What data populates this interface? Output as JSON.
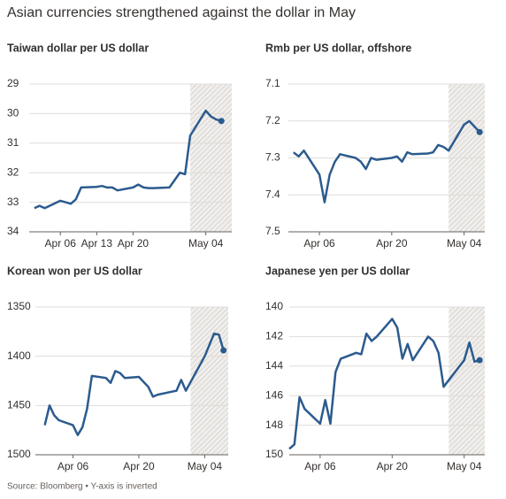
{
  "title": "Asian currencies strengthened against the dollar in May",
  "source": "Source: Bloomberg • Y-axis is inverted",
  "chart_data": [
    {
      "type": "line",
      "title": "Taiwan dollar per US dollar",
      "color": "#2b5b8e",
      "y_inverted": true,
      "grid": true,
      "end_marker": true,
      "shaded_from": "May 01",
      "xlim": [
        "Mar 31",
        "May 09"
      ],
      "xticks": [
        "Apr 06",
        "Apr 13",
        "Apr 20",
        "May 04"
      ],
      "ylim": [
        29,
        34
      ],
      "yticks": [
        29,
        30,
        31,
        32,
        33,
        34
      ],
      "x": [
        "Apr 01",
        "Apr 02",
        "Apr 03",
        "Apr 06",
        "Apr 07",
        "Apr 08",
        "Apr 09",
        "Apr 10",
        "Apr 13",
        "Apr 14",
        "Apr 15",
        "Apr 16",
        "Apr 17",
        "Apr 20",
        "Apr 21",
        "Apr 22",
        "Apr 23",
        "Apr 24",
        "Apr 27",
        "Apr 28",
        "Apr 29",
        "Apr 30",
        "May 01",
        "May 04",
        "May 05",
        "May 06",
        "May 07"
      ],
      "values": [
        33.2,
        33.12,
        33.2,
        32.95,
        33.0,
        33.05,
        32.9,
        32.5,
        32.48,
        32.45,
        32.5,
        32.5,
        32.6,
        32.5,
        32.4,
        32.5,
        32.52,
        32.52,
        32.5,
        32.25,
        32.0,
        32.05,
        30.75,
        29.9,
        30.1,
        30.2,
        30.25
      ]
    },
    {
      "type": "line",
      "title": "Rmb per US dollar, offshore",
      "color": "#2b5b8e",
      "y_inverted": true,
      "grid": true,
      "end_marker": true,
      "shaded_from": "May 01",
      "xlim": [
        "Mar 31",
        "May 08"
      ],
      "xticks": [
        "Apr 06",
        "Apr 20",
        "May 04"
      ],
      "ylim": [
        7.1,
        7.5
      ],
      "yticks": [
        7.1,
        7.2,
        7.3,
        7.4,
        7.5
      ],
      "x": [
        "Apr 01",
        "Apr 02",
        "Apr 03",
        "Apr 06",
        "Apr 07",
        "Apr 08",
        "Apr 09",
        "Apr 10",
        "Apr 13",
        "Apr 14",
        "Apr 15",
        "Apr 16",
        "Apr 17",
        "Apr 20",
        "Apr 21",
        "Apr 22",
        "Apr 23",
        "Apr 24",
        "Apr 27",
        "Apr 28",
        "Apr 29",
        "Apr 30",
        "May 01",
        "May 04",
        "May 05",
        "May 06",
        "May 07"
      ],
      "values": [
        7.285,
        7.296,
        7.28,
        7.345,
        7.42,
        7.345,
        7.31,
        7.29,
        7.3,
        7.31,
        7.33,
        7.3,
        7.305,
        7.3,
        7.296,
        7.31,
        7.285,
        7.29,
        7.288,
        7.285,
        7.265,
        7.27,
        7.28,
        7.21,
        7.2,
        7.215,
        7.23
      ]
    },
    {
      "type": "line",
      "title": "Korean won per US dollar",
      "color": "#2b5b8e",
      "y_inverted": true,
      "grid": true,
      "end_marker": true,
      "shaded_from": "May 01",
      "xlim": [
        "Mar 29",
        "May 09"
      ],
      "xticks": [
        "Apr 06",
        "Apr 20",
        "May 04"
      ],
      "ylim": [
        1350,
        1500
      ],
      "yticks": [
        1350,
        1400,
        1450,
        1500
      ],
      "x": [
        "Mar 31",
        "Apr 01",
        "Apr 02",
        "Apr 03",
        "Apr 06",
        "Apr 07",
        "Apr 08",
        "Apr 09",
        "Apr 10",
        "Apr 13",
        "Apr 14",
        "Apr 15",
        "Apr 16",
        "Apr 17",
        "Apr 20",
        "Apr 21",
        "Apr 22",
        "Apr 23",
        "Apr 24",
        "Apr 27",
        "Apr 28",
        "Apr 29",
        "Apr 30",
        "May 04",
        "May 06",
        "May 07",
        "May 08"
      ],
      "values": [
        1470,
        1450,
        1460,
        1465,
        1470,
        1480,
        1472,
        1453,
        1420,
        1422,
        1427,
        1415,
        1417,
        1422,
        1421,
        1426,
        1431,
        1441,
        1439,
        1436,
        1435,
        1424,
        1435,
        1400,
        1377,
        1378,
        1394
      ]
    },
    {
      "type": "line",
      "title": "Japanese yen per US dollar",
      "color": "#2b5b8e",
      "y_inverted": true,
      "grid": true,
      "end_marker": true,
      "shaded_from": "May 01",
      "xlim": [
        "Mar 31",
        "May 08"
      ],
      "xticks": [
        "Apr 06",
        "Apr 20",
        "May 04"
      ],
      "ylim": [
        140,
        150
      ],
      "yticks": [
        140,
        142,
        144,
        146,
        148,
        150
      ],
      "x": [
        "Mar 31",
        "Apr 01",
        "Apr 02",
        "Apr 03",
        "Apr 06",
        "Apr 07",
        "Apr 08",
        "Apr 09",
        "Apr 10",
        "Apr 13",
        "Apr 14",
        "Apr 15",
        "Apr 16",
        "Apr 17",
        "Apr 20",
        "Apr 21",
        "Apr 22",
        "Apr 23",
        "Apr 24",
        "Apr 27",
        "Apr 28",
        "Apr 29",
        "Apr 30",
        "May 04",
        "May 05",
        "May 06",
        "May 07"
      ],
      "values": [
        149.6,
        149.3,
        146.1,
        146.9,
        147.9,
        146.3,
        147.9,
        144.4,
        143.5,
        143.1,
        143.2,
        141.8,
        142.3,
        142.0,
        140.8,
        141.4,
        143.5,
        142.5,
        143.6,
        142.0,
        142.3,
        143.1,
        145.4,
        143.6,
        142.4,
        143.7,
        143.6
      ]
    }
  ]
}
